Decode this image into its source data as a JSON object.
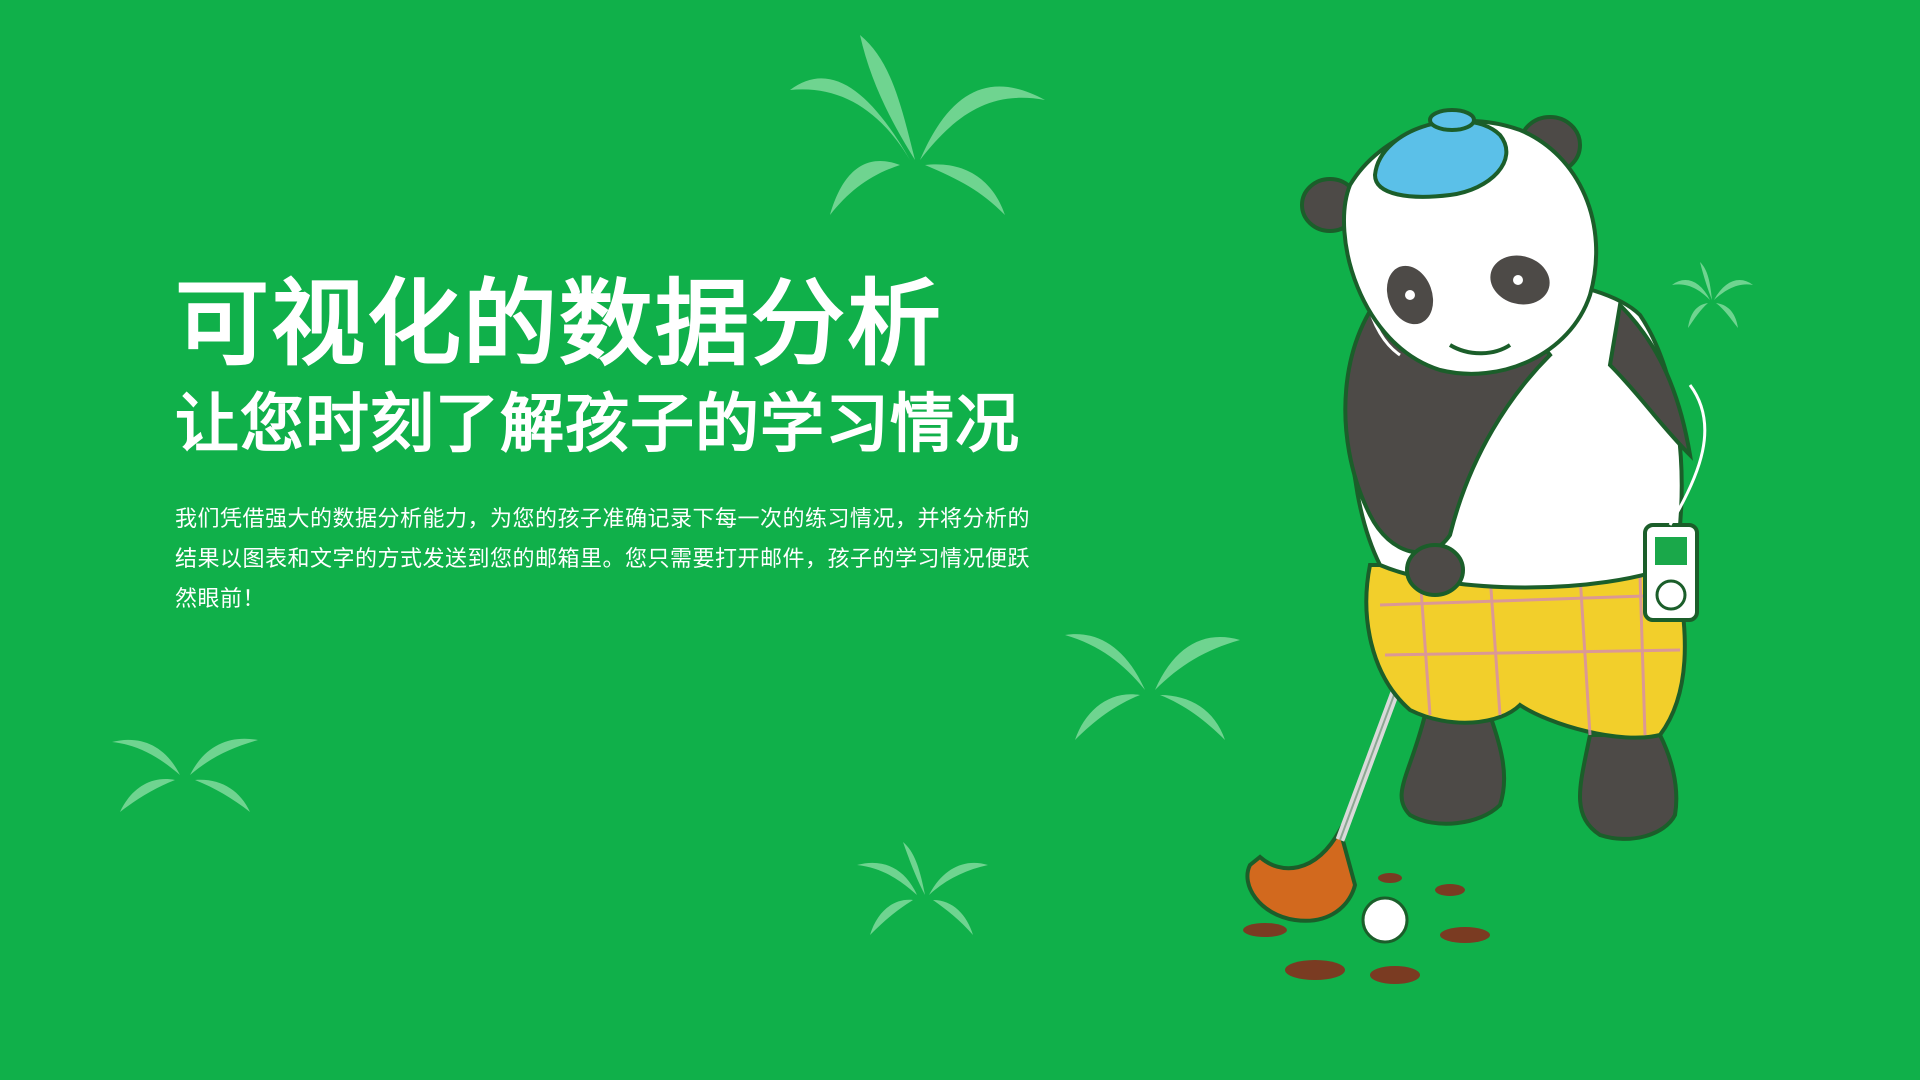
{
  "hero": {
    "title": "可视化的数据分析",
    "subtitle": "让您时刻了解孩子的学习情况",
    "description": "我们凭借强大的数据分析能力，为您的孩子准确记录下每一次的练习情况，并将分析的结果以图表和文字的方式发送到您的邮箱里。您只需要打开邮件，孩子的学习情况便跃然眼前！"
  },
  "colors": {
    "background": "#10b04a",
    "text": "#ffffff",
    "leaf": "#7fd89b"
  },
  "illustration": {
    "subject": "panda-golfer-illustration",
    "decorations": [
      "palm-leaf-icon",
      "palm-leaf-icon",
      "palm-leaf-icon",
      "palm-leaf-icon",
      "palm-leaf-icon"
    ]
  }
}
